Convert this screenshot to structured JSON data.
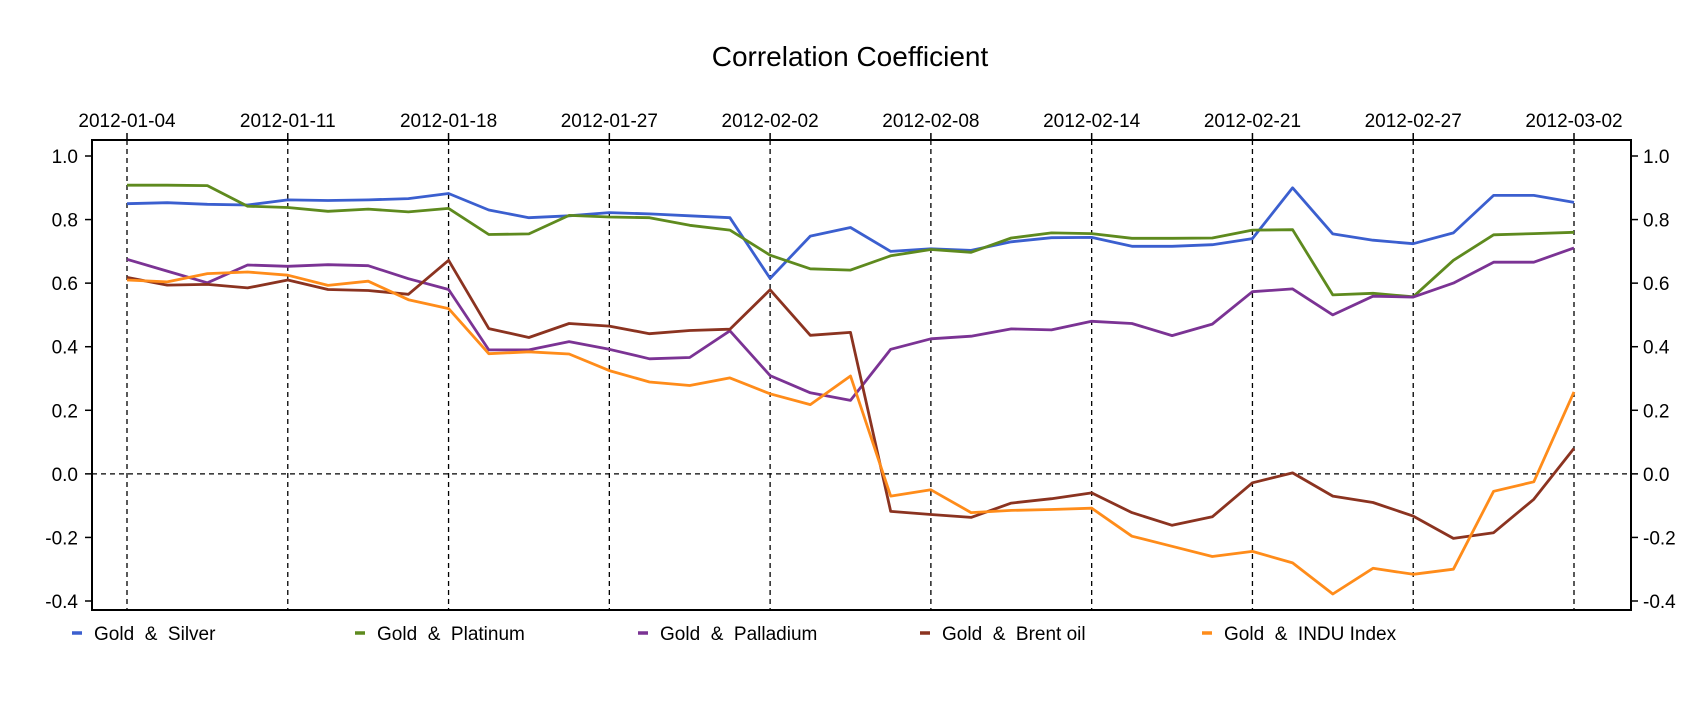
{
  "chart_data": {
    "type": "line",
    "title": "Correlation Coefficient",
    "xlabel": "",
    "ylabel": "",
    "ylim": [
      -0.4,
      1.0
    ],
    "y_ticks": [
      1.0,
      0.8,
      0.6,
      0.4,
      0.2,
      0.0,
      -0.2,
      -0.4
    ],
    "grid": "vertical dashed lines at labeled dates; dashed horizontal line at 0.0",
    "legend_position": "bottom",
    "x_tick_labels": [
      "2012-01-04",
      "2012-01-11",
      "2012-01-18",
      "2012-01-27",
      "2012-02-02",
      "2012-02-08",
      "2012-02-14",
      "2012-02-21",
      "2012-02-27",
      "2012-03-02"
    ],
    "x_tick_indices": [
      0,
      4,
      8,
      12,
      16,
      20,
      24,
      28,
      32,
      36
    ],
    "n_points": 37,
    "series": [
      {
        "name": "Gold  &  Silver",
        "color": "#3b5fcf",
        "values": [
          0.85,
          0.853,
          0.848,
          0.846,
          0.862,
          0.86,
          0.862,
          0.866,
          0.882,
          0.83,
          0.806,
          0.812,
          0.822,
          0.818,
          0.812,
          0.806,
          0.615,
          0.748,
          0.775,
          0.7,
          0.708,
          0.703,
          0.73,
          0.743,
          0.744,
          0.716,
          0.716,
          0.721,
          0.74,
          0.9,
          0.755,
          0.735,
          0.724,
          0.758,
          0.876,
          0.876,
          0.854
        ]
      },
      {
        "name": "Gold  &  Platinum",
        "color": "#5e8a1e",
        "values": [
          0.908,
          0.908,
          0.907,
          0.842,
          0.838,
          0.826,
          0.833,
          0.824,
          0.835,
          0.753,
          0.755,
          0.813,
          0.808,
          0.806,
          0.782,
          0.767,
          0.688,
          0.645,
          0.641,
          0.686,
          0.706,
          0.697,
          0.742,
          0.758,
          0.756,
          0.741,
          0.741,
          0.742,
          0.767,
          0.768,
          0.563,
          0.568,
          0.557,
          0.672,
          0.752,
          0.756,
          0.76
        ]
      },
      {
        "name": "Gold  &  Palladium",
        "color": "#7b3394",
        "values": [
          0.675,
          0.638,
          0.601,
          0.657,
          0.653,
          0.658,
          0.655,
          0.614,
          0.58,
          0.39,
          0.39,
          0.416,
          0.392,
          0.362,
          0.366,
          0.45,
          0.309,
          0.255,
          0.231,
          0.392,
          0.425,
          0.433,
          0.456,
          0.453,
          0.48,
          0.473,
          0.435,
          0.471,
          0.573,
          0.582,
          0.5,
          0.559,
          0.556,
          0.6,
          0.666,
          0.666,
          0.711
        ]
      },
      {
        "name": "Gold  &  Brent oil",
        "color": "#8b3320",
        "values": [
          0.618,
          0.594,
          0.596,
          0.585,
          0.61,
          0.58,
          0.577,
          0.565,
          0.672,
          0.457,
          0.429,
          0.473,
          0.465,
          0.441,
          0.451,
          0.455,
          0.579,
          0.436,
          0.445,
          -0.118,
          -0.128,
          -0.137,
          -0.092,
          -0.078,
          -0.06,
          -0.122,
          -0.162,
          -0.135,
          -0.028,
          0.003,
          -0.07,
          -0.09,
          -0.133,
          -0.203,
          -0.185,
          -0.08,
          0.08
        ]
      },
      {
        "name": "Gold  &  INDU Index",
        "color": "#ff8c1a",
        "values": [
          0.61,
          0.604,
          0.63,
          0.635,
          0.625,
          0.593,
          0.606,
          0.548,
          0.52,
          0.378,
          0.384,
          0.377,
          0.325,
          0.289,
          0.278,
          0.302,
          0.252,
          0.218,
          0.308,
          -0.07,
          -0.05,
          -0.122,
          -0.115,
          -0.112,
          -0.108,
          -0.196,
          -0.228,
          -0.26,
          -0.244,
          -0.28,
          -0.378,
          -0.297,
          -0.316,
          -0.3,
          -0.055,
          -0.025,
          0.258
        ]
      }
    ]
  }
}
